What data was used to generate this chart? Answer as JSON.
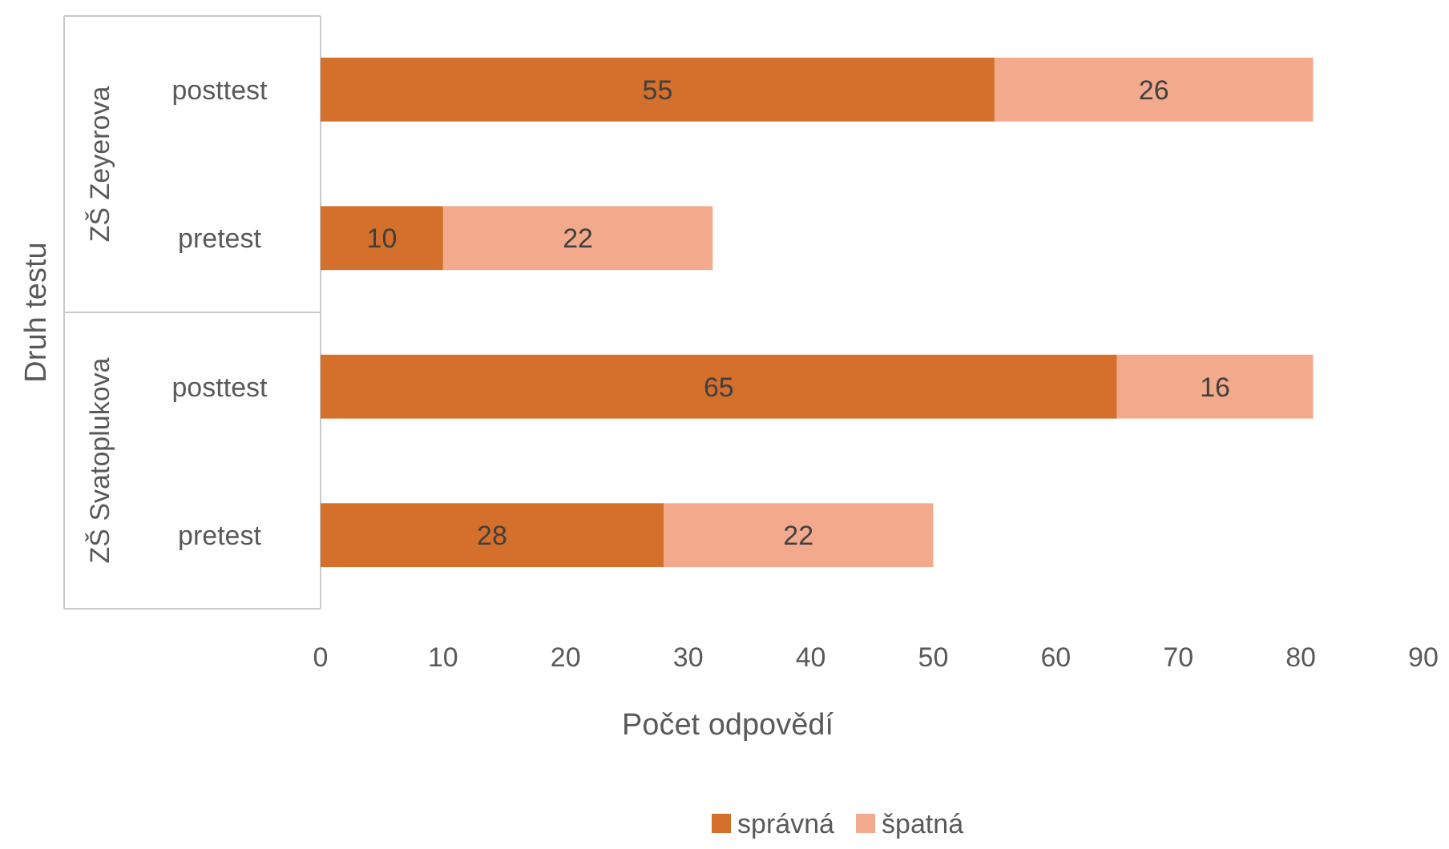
{
  "chart_data": {
    "type": "bar",
    "orientation": "horizontal",
    "stacked": true,
    "xlabel": "Počet odpovědí",
    "ylabel": "Druh testu",
    "categories": [
      "posttest",
      "pretest",
      "posttest",
      "pretest"
    ],
    "annotations": [
      "ZŠ Zeyerova",
      "ZŠ Svatoplukova"
    ],
    "series": [
      {
        "name": "správná",
        "color": "#d46f2c",
        "values": [
          55,
          10,
          65,
          28
        ]
      },
      {
        "name": "špatná",
        "color": "#f3a98b",
        "values": [
          26,
          22,
          16,
          22
        ]
      }
    ],
    "xlim": [
      0,
      90
    ],
    "xticks": [
      0,
      10,
      20,
      30,
      40,
      50,
      60,
      70,
      80,
      90
    ],
    "data_labels": true,
    "grid": false,
    "legend": "bottom"
  }
}
